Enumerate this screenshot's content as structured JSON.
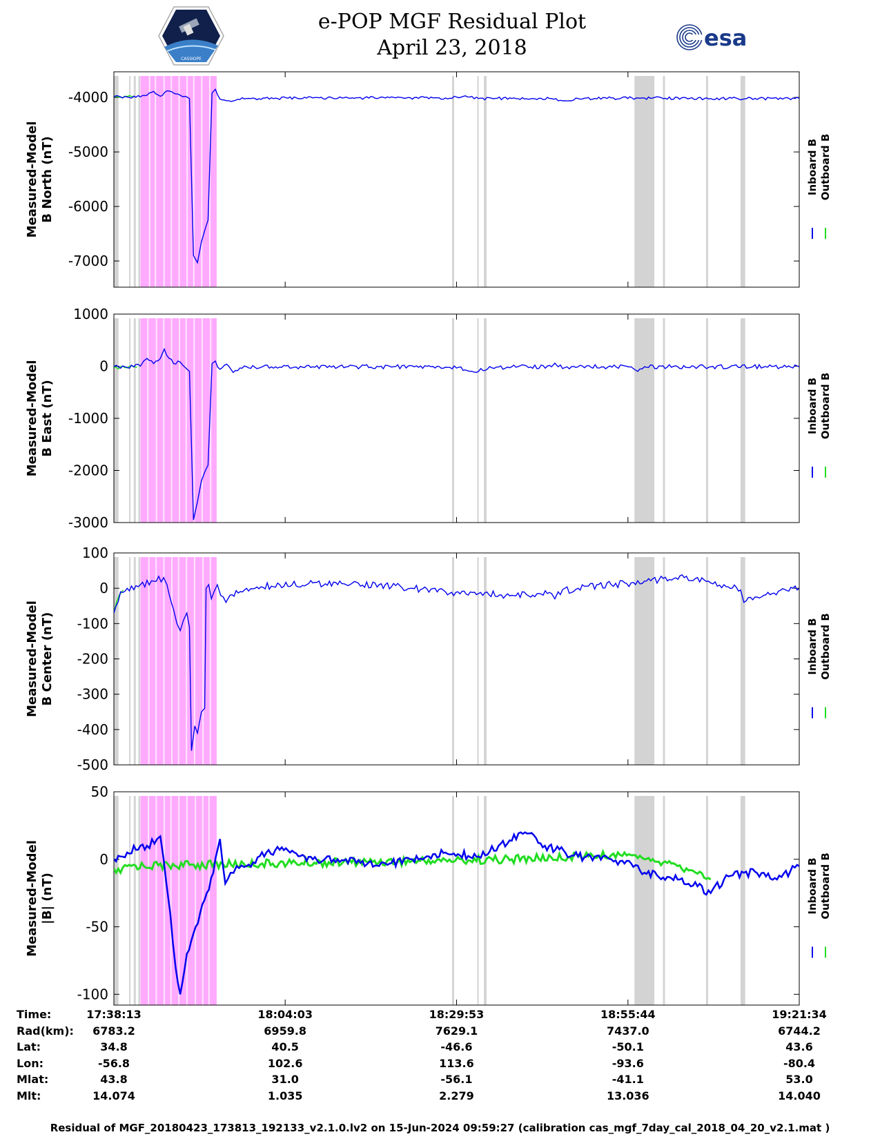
{
  "header": {
    "title": "e-POP MGF Residual Plot",
    "date": "April 23, 2018",
    "logo_left_name": "cassiope-mission-logo",
    "logo_left_text": "CASSIOPE",
    "logo_right_text": "esa"
  },
  "colors": {
    "inboard": "#0000ee",
    "outboard": "#22dd22",
    "pink_band": "#ffaaff",
    "gray_band": "#d3d3d3"
  },
  "chart_data": {
    "type": "line",
    "time_ticks": [
      "17:38:13",
      "18:04:03",
      "18:29:53",
      "18:55:44",
      "19:21:34"
    ],
    "x_minutes": [
      0,
      25.83,
      51.67,
      77.52,
      103.35
    ],
    "legend": [
      "Inboard B",
      "Outboard B"
    ],
    "pink_interval_min": [
      4.0,
      15.5
    ],
    "gray_intervals_min": [
      [
        0.0,
        0.7
      ],
      [
        2.3,
        2.5
      ],
      [
        3.0,
        3.3
      ],
      [
        3.7,
        3.95
      ],
      [
        51.0,
        51.3
      ],
      [
        54.8,
        55.0
      ],
      [
        55.8,
        56.2
      ],
      [
        78.5,
        81.5
      ],
      [
        82.8,
        83.1
      ],
      [
        89.3,
        89.6
      ],
      [
        94.5,
        95.2
      ]
    ],
    "panels": [
      {
        "ylabel": [
          "Measured-Model",
          "B North (nT)"
        ],
        "ylim": [
          -7480,
          -3530
        ],
        "yticks": [
          -4000,
          -5000,
          -6000,
          -7000
        ],
        "inboard": {
          "x": [
            0,
            4,
            5,
            6,
            7,
            8,
            9,
            10,
            10.8,
            11.4,
            12.0,
            12.6,
            13.2,
            13.8,
            14.2,
            14.8,
            15.3,
            16.0,
            17.0,
            20,
            30,
            40,
            50,
            53,
            55,
            60,
            66,
            68,
            70,
            80,
            90,
            103.35
          ],
          "y": [
            -3990,
            -3990,
            -3960,
            -3890,
            -3980,
            -3880,
            -3920,
            -3960,
            -3980,
            -4020,
            -6900,
            -7030,
            -6650,
            -6400,
            -6250,
            -3920,
            -3850,
            -4030,
            -4060,
            -4020,
            -4010,
            -4010,
            -4010,
            -3970,
            -4020,
            -4020,
            -4020,
            -4060,
            -4020,
            -4010,
            -4020,
            -4020
          ]
        },
        "outboard": {
          "x": [
            0,
            1,
            2,
            3
          ],
          "y": [
            -3985,
            -3995,
            -3985,
            -3995
          ]
        }
      },
      {
        "ylabel": [
          "Measured-Model",
          "B East (nT)"
        ],
        "ylim": [
          -3000,
          1000
        ],
        "yticks": [
          1000,
          0,
          -1000,
          -2000,
          -3000
        ],
        "inboard": {
          "x": [
            0,
            4,
            4.5,
            5,
            6,
            7,
            7.6,
            8,
            9,
            10,
            10.8,
            11.4,
            12.0,
            12.6,
            13.2,
            13.8,
            14.2,
            14.8,
            15.3,
            16.0,
            17.0,
            18.0,
            20,
            30,
            40,
            50,
            52,
            54,
            57,
            60,
            66,
            66.5,
            67,
            70,
            78,
            79,
            80,
            90,
            103.35
          ],
          "y": [
            -10,
            0,
            100,
            150,
            50,
            150,
            330,
            200,
            50,
            80,
            -30,
            -100,
            -2950,
            -2600,
            -2200,
            -2000,
            -1900,
            50,
            100,
            -60,
            40,
            -120,
            -10,
            -10,
            -10,
            -20,
            -20,
            -100,
            -30,
            -10,
            -10,
            60,
            -10,
            -10,
            -10,
            -100,
            -10,
            -10,
            -10
          ]
        },
        "outboard": {
          "x": [
            0,
            1,
            2,
            3,
            3.5
          ],
          "y": [
            -20,
            -10,
            -30,
            -10,
            -20
          ]
        }
      },
      {
        "ylabel": [
          "Measured-Model",
          "B Center (nT)"
        ],
        "ylim": [
          -500,
          100
        ],
        "yticks": [
          100,
          0,
          -100,
          -200,
          -300,
          -400,
          -500
        ],
        "inboard": {
          "x": [
            0,
            1,
            2,
            4,
            6,
            7.5,
            8,
            9,
            9.5,
            10,
            10.5,
            11.0,
            11.4,
            11.7,
            12.2,
            12.6,
            13.2,
            13.7,
            13.9,
            14.3,
            14.7,
            15.1,
            15.6,
            16.1,
            16.9,
            17.5,
            20,
            25,
            30,
            35,
            40,
            45,
            50,
            55,
            60,
            66,
            66.5,
            67,
            70,
            75,
            78,
            80,
            86,
            90,
            92,
            94.5,
            95,
            98,
            103.35
          ],
          "y": [
            -70,
            -10,
            0,
            10,
            20,
            30,
            10,
            -60,
            -100,
            -120,
            -90,
            -70,
            -110,
            -460,
            -390,
            -410,
            -350,
            -340,
            0,
            10,
            -30,
            -10,
            10,
            -20,
            -40,
            -20,
            0,
            10,
            15,
            10,
            10,
            0,
            -10,
            -15,
            -20,
            -15,
            -30,
            -10,
            0,
            10,
            15,
            20,
            30,
            15,
            10,
            -5,
            -40,
            -20,
            0
          ]
        },
        "outboard": {
          "x": [
            0,
            0.4,
            0.8,
            1.4
          ],
          "y": [
            -70,
            -40,
            -20,
            -5
          ]
        }
      },
      {
        "ylabel": [
          "Measured-Model",
          "|B| (nT)"
        ],
        "ylim": [
          -108,
          50
        ],
        "yticks": [
          50,
          0,
          -50,
          -100
        ],
        "inboard": {
          "x": [
            0,
            2,
            4,
            5,
            6.5,
            7.0,
            7.5,
            8.5,
            9.3,
            10.0,
            11.0,
            12.0,
            13.0,
            14.0,
            15.0,
            16.0,
            16.8,
            17.6,
            18.5,
            20,
            23,
            25,
            30,
            35,
            40,
            45,
            50,
            55,
            58,
            62,
            65,
            70,
            75,
            78,
            80,
            85,
            88,
            90,
            92,
            95,
            98,
            100,
            103.35
          ],
          "y": [
            0,
            5,
            10,
            10,
            15,
            17,
            0,
            -40,
            -80,
            -100,
            -70,
            -55,
            -40,
            -25,
            -10,
            15,
            -18,
            -10,
            -5,
            -5,
            5,
            7,
            0,
            0,
            -5,
            0,
            5,
            2,
            10,
            20,
            10,
            2,
            0,
            -3,
            -10,
            -15,
            -20,
            -25,
            -15,
            -10,
            -10,
            -15,
            -5
          ]
        },
        "outboard": {
          "x": [
            0,
            1,
            2,
            60,
            70,
            75,
            78,
            80,
            85,
            87,
            90
          ],
          "y": [
            -7,
            -10,
            -5,
            0,
            2,
            3,
            3,
            0,
            -5,
            -8,
            -15
          ]
        }
      }
    ]
  },
  "ephemeris": {
    "labels": [
      "Time:",
      "Rad(km):",
      "Lat:",
      "Lon:",
      "Mlat:",
      "Mlt:"
    ],
    "columns": [
      [
        "17:38:13",
        "6783.2",
        "34.8",
        "-56.8",
        "43.8",
        "14.074"
      ],
      [
        "18:04:03",
        "6959.8",
        "40.5",
        "102.6",
        "31.0",
        "1.035"
      ],
      [
        "18:29:53",
        "7629.1",
        "-46.6",
        "113.6",
        "-56.1",
        "2.279"
      ],
      [
        "18:55:44",
        "7437.0",
        "-50.1",
        "-93.6",
        "-41.1",
        "13.036"
      ],
      [
        "19:21:34",
        "6744.2",
        "43.6",
        "-80.4",
        "53.0",
        "14.040"
      ]
    ]
  },
  "footer": "Residual of MGF_20180423_173813_192133_v2.1.0.lv2 on 15-Jun-2024 09:59:27 (calibration cas_mgf_7day_cal_2018_04_20_v2.1.mat )"
}
